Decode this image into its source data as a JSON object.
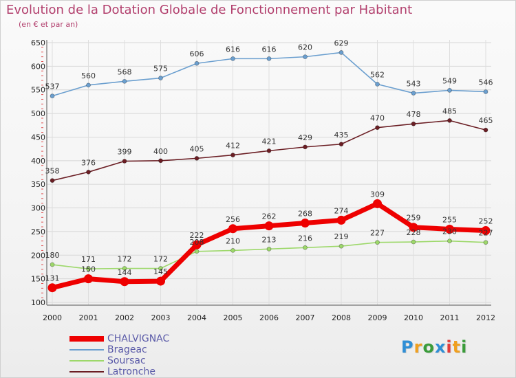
{
  "chart_data": {
    "type": "line",
    "title": "Evolution de la Dotation Globale de Fonctionnement par Habitant",
    "subtitle": "(en € et par an)",
    "xlabel": "",
    "ylabel": "",
    "x": [
      "2000",
      "2001",
      "2002",
      "2003",
      "2004",
      "2005",
      "2006",
      "2007",
      "2008",
      "2009",
      "2010",
      "2011",
      "2012"
    ],
    "ylim": [
      100,
      650
    ],
    "yticks": [
      "100",
      "150",
      "200",
      "250",
      "300",
      "350",
      "400",
      "450",
      "500",
      "550",
      "600",
      "650"
    ],
    "grid": true,
    "legend_position": "bottom-left",
    "series": [
      {
        "name": "Brageac",
        "color": "#6b9fcf",
        "values": [
          537,
          560,
          568,
          575,
          606,
          616,
          616,
          620,
          629,
          562,
          543,
          549,
          546
        ]
      },
      {
        "name": "Latronche",
        "color": "#6b1e24",
        "values": [
          358,
          376,
          399,
          400,
          405,
          412,
          421,
          429,
          435,
          470,
          478,
          485,
          465
        ]
      },
      {
        "name": "Soursac",
        "color": "#9dd86a",
        "values": [
          180,
          171,
          172,
          172,
          208,
          210,
          213,
          216,
          219,
          227,
          228,
          230,
          227
        ]
      },
      {
        "name": "CHALVIGNAC",
        "color": "#ee0000",
        "values": [
          131,
          150,
          144,
          145,
          222,
          256,
          262,
          268,
          274,
          309,
          259,
          255,
          252
        ]
      }
    ],
    "legend": [
      {
        "name": "CHALVIGNAC",
        "color": "#ee0000"
      },
      {
        "name": "Brageac",
        "color": "#6b9fcf"
      },
      {
        "name": "Soursac",
        "color": "#9dd86a"
      },
      {
        "name": "Latronche",
        "color": "#6b1e24"
      }
    ]
  },
  "logo": {
    "letters": [
      "P",
      "r",
      "o",
      "x",
      "i",
      "t",
      "i"
    ],
    "colors": [
      "#2f8fd6",
      "#f0a020",
      "#3a9c3a",
      "#2f8fd6",
      "#e23b3b",
      "#f0a020",
      "#3a9c3a"
    ]
  }
}
